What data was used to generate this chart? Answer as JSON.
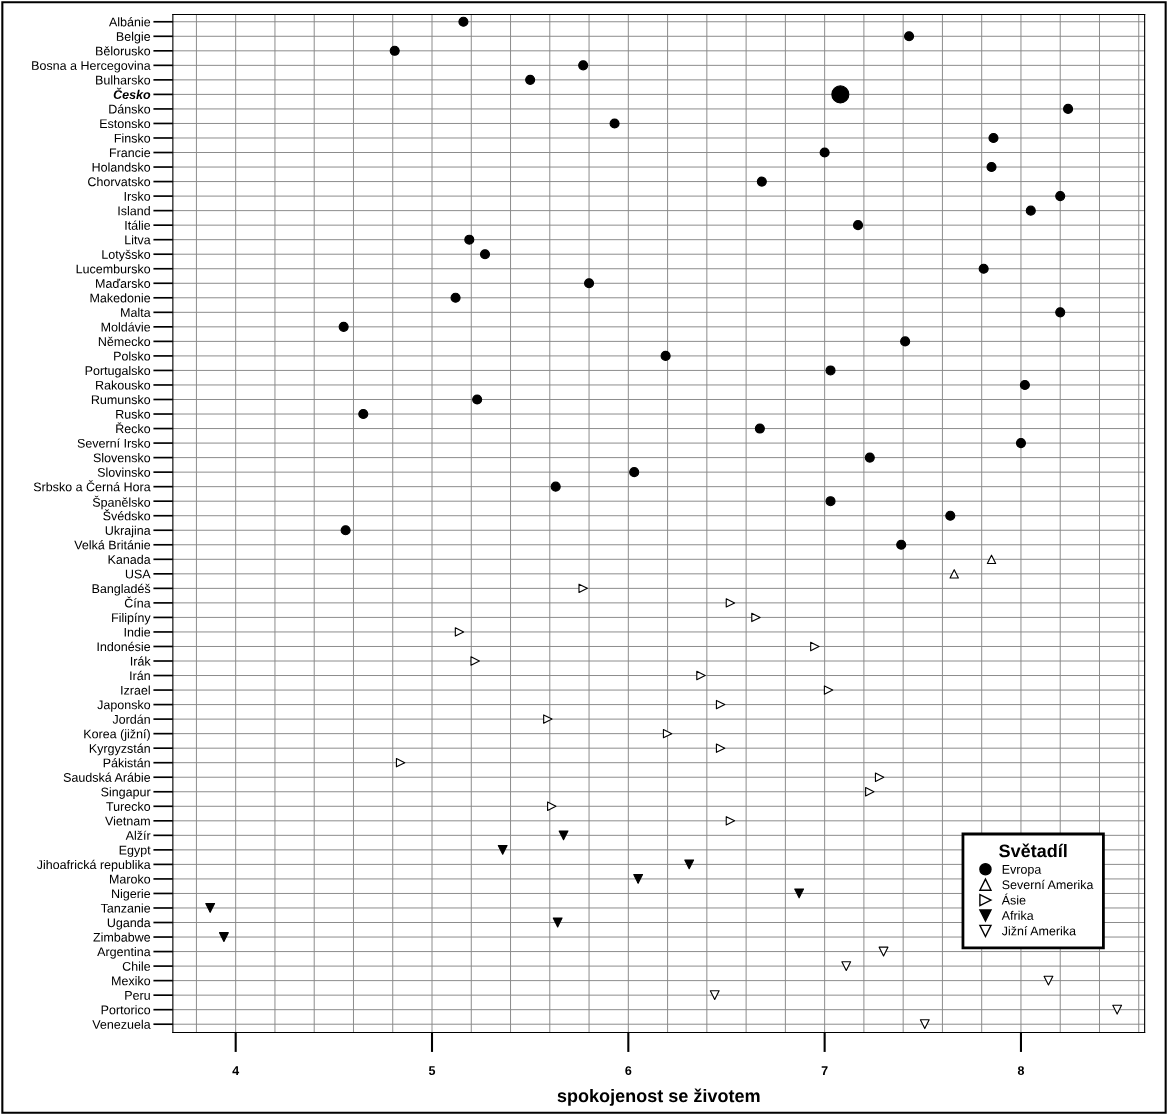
{
  "chart_data": {
    "type": "scatter",
    "xlabel": "spokojenost se životem",
    "legend_title": "Světadíl",
    "legend": "bottom right",
    "grid": true,
    "orientation": "horizontal",
    "xlim": [
      3.68,
      8.63
    ],
    "xticks": [
      {
        "value": 3.8,
        "label": null
      },
      4,
      {
        "value": 4.2,
        "label": null
      },
      {
        "value": 4.4,
        "label": null
      },
      {
        "value": 4.6,
        "label": null
      },
      {
        "value": 4.8,
        "label": null
      },
      5,
      {
        "value": 5.2,
        "label": null
      },
      {
        "value": 5.4,
        "label": null
      },
      {
        "value": 5.6,
        "label": null
      },
      {
        "value": 5.8,
        "label": null
      },
      6,
      {
        "value": 6.2,
        "label": null
      },
      {
        "value": 6.4,
        "label": null
      },
      {
        "value": 6.6,
        "label": null
      },
      {
        "value": 6.8,
        "label": null
      },
      7,
      {
        "value": 7.2,
        "label": null
      },
      {
        "value": 7.4,
        "label": null
      },
      {
        "value": 7.6,
        "label": null
      },
      {
        "value": 7.8,
        "label": null
      },
      8,
      {
        "value": 8.2,
        "label": null
      },
      {
        "value": 8.4,
        "label": null
      },
      {
        "value": 8.6,
        "label": null
      }
    ],
    "categories": [
      "Albánie",
      "Belgie",
      "Bělorusko",
      "Bosna a Hercegovina",
      "Bulharsko",
      "Česko",
      "Dánsko",
      "Estonsko",
      "Finsko",
      "Francie",
      "Holandsko",
      "Chorvatsko",
      "Irsko",
      "Island",
      "Itálie",
      "Litva",
      "Lotyšsko",
      "Lucembursko",
      "Maďarsko",
      "Makedonie",
      "Malta",
      "Moldávie",
      "Německo",
      "Polsko",
      "Portugalsko",
      "Rakousko",
      "Rumunsko",
      "Rusko",
      "Řecko",
      "Severní Irsko",
      "Slovensko",
      "Slovinsko",
      "Srbsko a Černá Hora",
      "Španělsko",
      "Švédsko",
      "Ukrajina",
      "Velká Británie",
      "Kanada",
      "USA",
      "Bangladéš",
      "Čína",
      "Filipíny",
      "Indie",
      "Indonésie",
      "Irák",
      "Irán",
      "Izrael",
      "Japonsko",
      "Jordán",
      "Korea (jižní)",
      "Kyrgyzstán",
      "Pákistán",
      "Saudská Arábie",
      "Singapur",
      "Turecko",
      "Vietnam",
      "Alžír",
      "Egypt",
      "Jihoafrická republika",
      "Maroko",
      "Nigerie",
      "Tanzanie",
      "Uganda",
      "Zimbabwe",
      "Argentina",
      "Chile",
      "Mexiko",
      "Peru",
      "Portorico",
      "Venezuela"
    ],
    "series": [
      {
        "name": "Evropa",
        "color": "#000000",
        "marker": "circle",
        "values": [
          5.16,
          7.43,
          4.81,
          5.77,
          5.5,
          null,
          8.24,
          5.93,
          7.86,
          7.0,
          7.85,
          6.68,
          8.2,
          8.05,
          7.17,
          5.19,
          5.27,
          7.81,
          5.8,
          5.12,
          8.2,
          4.55,
          7.41,
          6.19,
          7.03,
          8.02,
          5.23,
          4.65,
          6.67,
          8.0,
          7.23,
          6.03,
          5.63,
          7.03,
          7.64,
          4.56,
          7.39,
          null,
          null,
          null,
          null,
          null,
          null,
          null,
          null,
          null,
          null,
          null,
          null,
          null,
          null,
          null,
          null,
          null,
          null,
          null,
          null,
          null,
          null,
          null,
          null,
          null,
          null,
          null,
          null,
          null,
          null,
          null,
          null,
          null
        ]
      },
      {
        "color": "#000000",
        "marker": "circle_large",
        "values": [
          null,
          null,
          null,
          null,
          null,
          7.08,
          null,
          null,
          null,
          null,
          null,
          null,
          null,
          null,
          null,
          null,
          null,
          null,
          null,
          null,
          null,
          null,
          null,
          null,
          null,
          null,
          null,
          null,
          null,
          null,
          null,
          null,
          null,
          null,
          null,
          null,
          null,
          null,
          null,
          null,
          null,
          null,
          null,
          null,
          null,
          null,
          null,
          null,
          null,
          null,
          null,
          null,
          null,
          null,
          null,
          null,
          null,
          null,
          null,
          null,
          null,
          null,
          null,
          null,
          null,
          null,
          null,
          null,
          null,
          null
        ]
      },
      {
        "name": "Severní Amerika",
        "color": "#000000",
        "marker": "triangle_open",
        "values": [
          null,
          null,
          null,
          null,
          null,
          null,
          null,
          null,
          null,
          null,
          null,
          null,
          null,
          null,
          null,
          null,
          null,
          null,
          null,
          null,
          null,
          null,
          null,
          null,
          null,
          null,
          null,
          null,
          null,
          null,
          null,
          null,
          null,
          null,
          null,
          null,
          null,
          7.85,
          7.66,
          null,
          null,
          null,
          null,
          null,
          null,
          null,
          null,
          null,
          null,
          null,
          null,
          null,
          null,
          null,
          null,
          null,
          null,
          null,
          null,
          null,
          null,
          null,
          null,
          null,
          null,
          null,
          null,
          null,
          null,
          null
        ]
      },
      {
        "name": "Ásie",
        "color": "#000000",
        "marker": "triangle_right_open",
        "values": [
          null,
          null,
          null,
          null,
          null,
          null,
          null,
          null,
          null,
          null,
          null,
          null,
          null,
          null,
          null,
          null,
          null,
          null,
          null,
          null,
          null,
          null,
          null,
          null,
          null,
          null,
          null,
          null,
          null,
          null,
          null,
          null,
          null,
          null,
          null,
          null,
          null,
          null,
          null,
          5.77,
          6.52,
          6.65,
          5.14,
          6.95,
          5.22,
          6.37,
          7.02,
          6.47,
          5.59,
          6.2,
          6.47,
          4.84,
          7.28,
          7.23,
          5.61,
          6.52,
          null,
          null,
          null,
          null,
          null,
          null,
          null,
          null,
          null,
          null,
          null,
          null,
          null,
          null
        ]
      },
      {
        "name": "Afrika",
        "color": "#000000",
        "marker": "triangle_down",
        "values": [
          null,
          null,
          null,
          null,
          null,
          null,
          null,
          null,
          null,
          null,
          null,
          null,
          null,
          null,
          null,
          null,
          null,
          null,
          null,
          null,
          null,
          null,
          null,
          null,
          null,
          null,
          null,
          null,
          null,
          null,
          null,
          null,
          null,
          null,
          null,
          null,
          null,
          null,
          null,
          null,
          null,
          null,
          null,
          null,
          null,
          null,
          null,
          null,
          null,
          null,
          null,
          null,
          null,
          null,
          null,
          null,
          5.67,
          5.36,
          6.31,
          6.05,
          6.87,
          3.87,
          5.64,
          3.94,
          null,
          null,
          null,
          null,
          null,
          null
        ]
      },
      {
        "name": "Jižní Amerika",
        "color": "#000000",
        "marker": "triangle_down_open",
        "values": [
          null,
          null,
          null,
          null,
          null,
          null,
          null,
          null,
          null,
          null,
          null,
          null,
          null,
          null,
          null,
          null,
          null,
          null,
          null,
          null,
          null,
          null,
          null,
          null,
          null,
          null,
          null,
          null,
          null,
          null,
          null,
          null,
          null,
          null,
          null,
          null,
          null,
          null,
          null,
          null,
          null,
          null,
          null,
          null,
          null,
          null,
          null,
          null,
          null,
          null,
          null,
          null,
          null,
          null,
          null,
          null,
          null,
          null,
          null,
          null,
          null,
          null,
          null,
          null,
          7.3,
          7.11,
          8.14,
          6.44,
          8.49,
          7.51
        ]
      }
    ]
  }
}
